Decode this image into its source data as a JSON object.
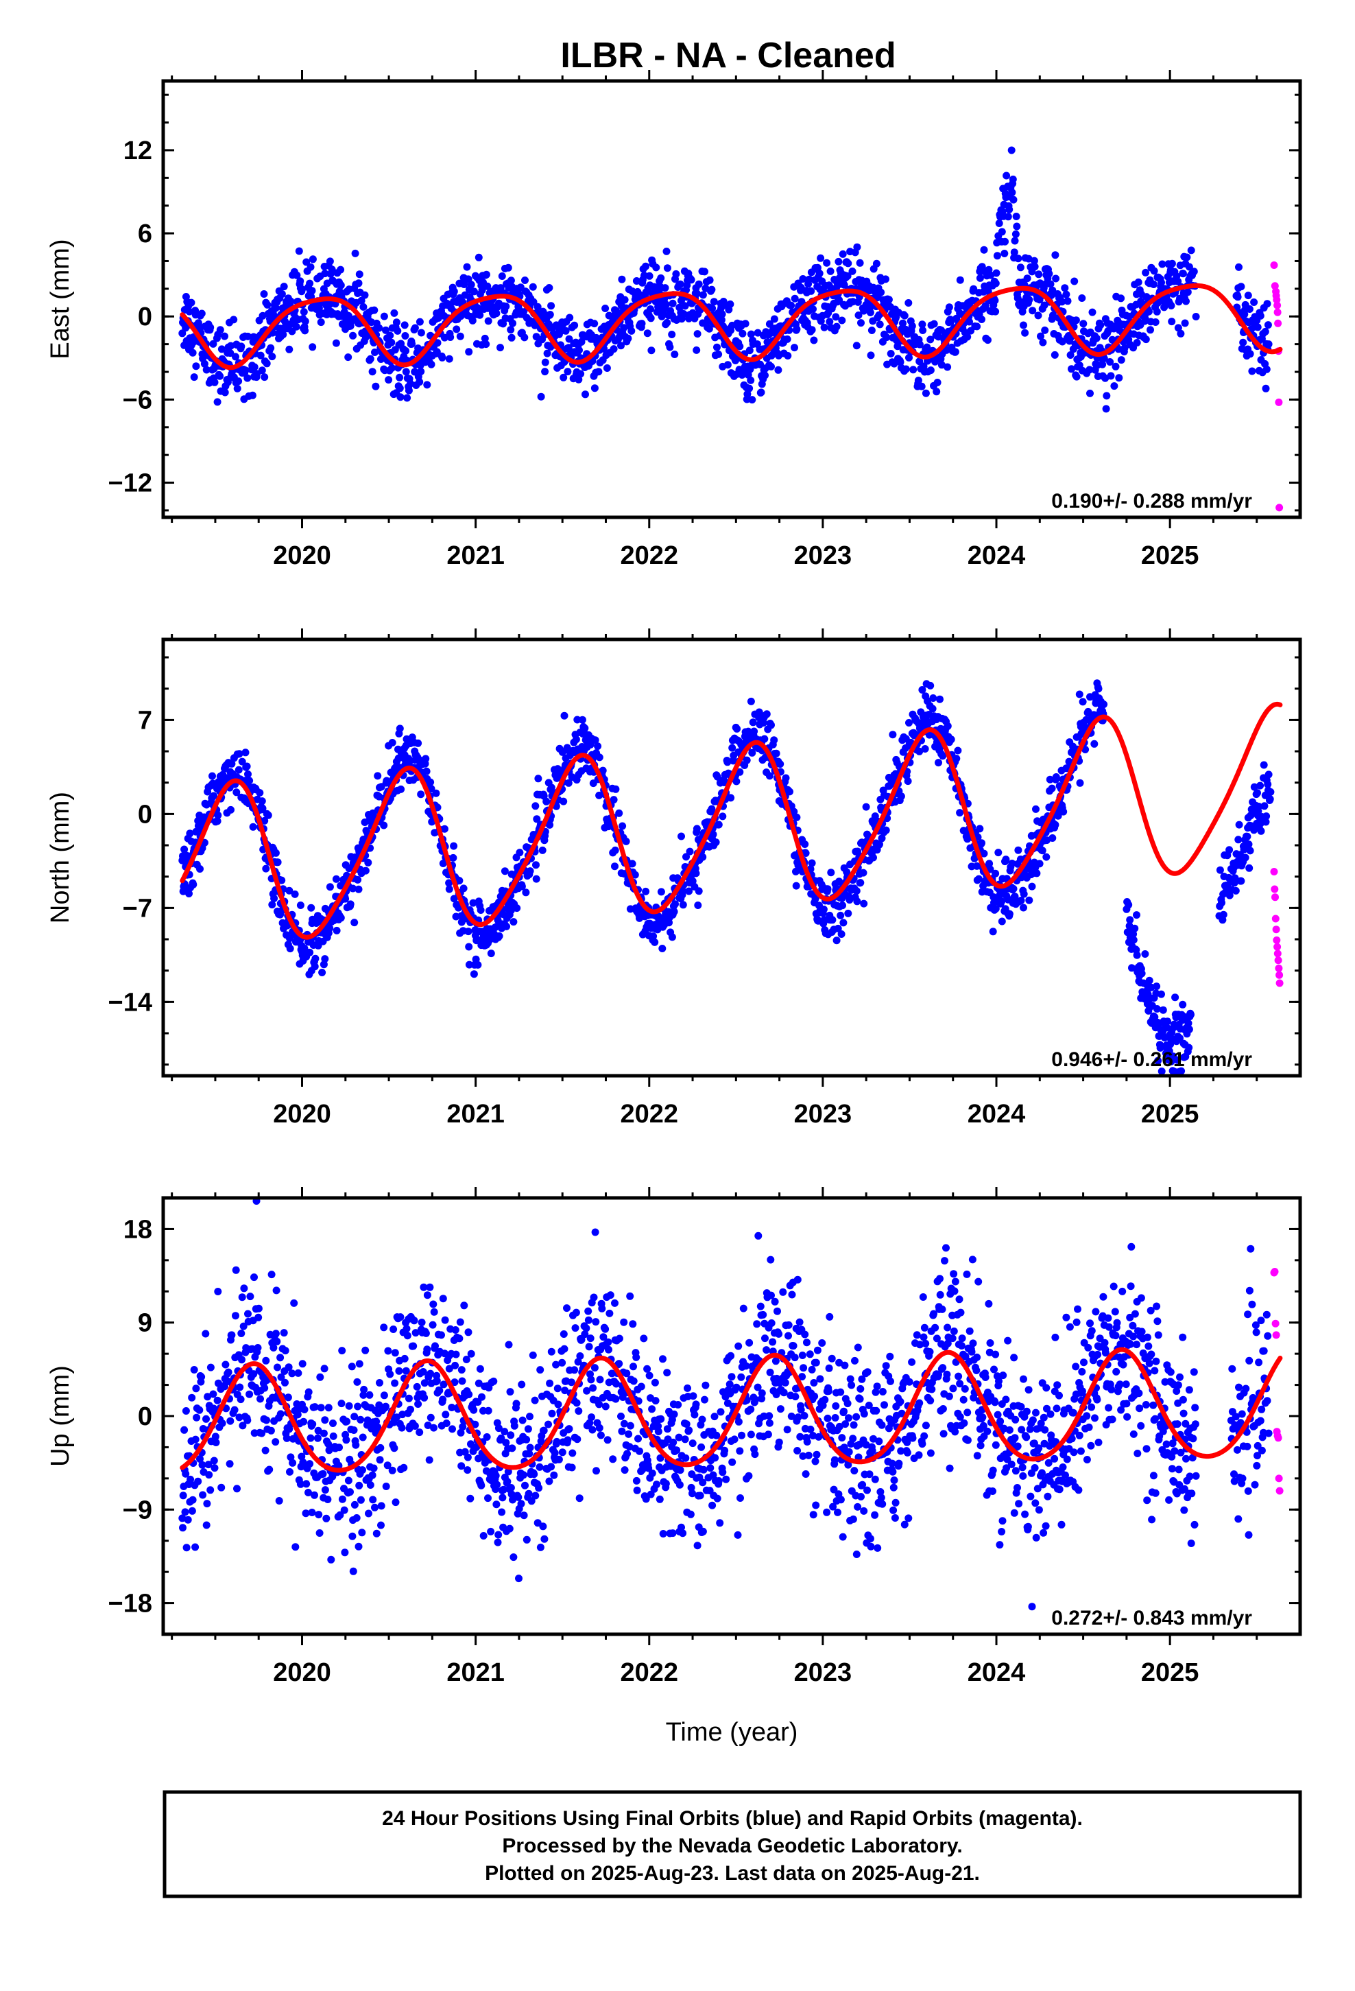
{
  "title": "ILBR  - NA - Cleaned",
  "colors": {
    "final": "#0000ff",
    "rapid": "#ff00ff",
    "fit": "#ff0000",
    "frame": "#000000"
  },
  "chart_data": [
    {
      "type": "scatter",
      "component": "east",
      "ylabel": "East (mm)",
      "xlabel": "",
      "xlim": [
        2019.2,
        2025.75
      ],
      "ylim": [
        -14.5,
        17
      ],
      "yticks": [
        12,
        6,
        0,
        -6,
        -12
      ],
      "ytick_labels": [
        "12",
        "6",
        "0",
        "−6",
        "−12"
      ],
      "xticks": [
        2020,
        2021,
        2022,
        2023,
        2024,
        2025
      ],
      "xtick_labels": [
        "2020",
        "2021",
        "2022",
        "2023",
        "2024",
        "2025"
      ],
      "rate_text": "0.190+/- 0.288 mm/yr",
      "fit_model": {
        "offset": -0.3,
        "trend": 0.19,
        "t0": 2022.5,
        "annual_amp": 2.4,
        "annual_phase": 0.85,
        "semiannual_amp": 0.45,
        "semiannual_phase": 0.2
      },
      "series": [
        {
          "name": "Final Orbits",
          "color": "#0000ff",
          "start": 2019.31,
          "end": 2025.57,
          "scatter": 1.3,
          "gaps": [
            [
              2025.15,
              2025.38
            ]
          ],
          "offsets": [
            [
              2024.0,
              2024.12,
              4.5
            ],
            [
              2024.05,
              2024.1,
              7
            ]
          ]
        },
        {
          "name": "Rapid Orbits",
          "color": "#ff00ff",
          "x": [
            2025.6,
            2025.605,
            2025.61,
            2025.612,
            2025.615,
            2025.618,
            2025.62,
            2025.622,
            2025.625,
            2025.627,
            2025.63
          ],
          "y": [
            3.7,
            2.2,
            1.8,
            1.5,
            1.2,
            0.8,
            0.3,
            -0.5,
            -2.5,
            -6.2,
            -13.8
          ]
        }
      ]
    },
    {
      "type": "scatter",
      "component": "north",
      "ylabel": "North (mm)",
      "xlabel": "",
      "xlim": [
        2019.2,
        2025.75
      ],
      "ylim": [
        -19.5,
        13
      ],
      "yticks": [
        7,
        0,
        -7,
        -14
      ],
      "ytick_labels": [
        "7",
        "0",
        "−7",
        "−14"
      ],
      "xticks": [
        2020,
        2021,
        2022,
        2023,
        2024,
        2025
      ],
      "xtick_labels": [
        "2020",
        "2021",
        "2022",
        "2023",
        "2024",
        "2025"
      ],
      "rate_text": "0.946+/- 0.261 mm/yr",
      "fit_model": {
        "offset": -1.1,
        "trend": 0.95,
        "t0": 2022.5,
        "annual_amp": 5.8,
        "annual_phase": 0.33,
        "semiannual_amp": 0.9,
        "semiannual_phase": 0.05
      },
      "series": [
        {
          "name": "Final Orbits",
          "color": "#0000ff",
          "start": 2019.31,
          "end": 2025.58,
          "scatter": 1.1,
          "bias": 1.3,
          "gaps": [
            [
              2024.62,
              2024.75
            ],
            [
              2025.12,
              2025.28
            ]
          ],
          "offsets": [
            [
              2024.75,
              2025.12,
              -12.5
            ],
            [
              2025.28,
              2025.6,
              -6.5
            ]
          ]
        },
        {
          "name": "Rapid Orbits",
          "color": "#ff00ff",
          "x": [
            2025.6,
            2025.603,
            2025.606,
            2025.609,
            2025.612,
            2025.615,
            2025.618,
            2025.621,
            2025.624,
            2025.627,
            2025.63,
            2025.632
          ],
          "y": [
            -4.3,
            -5.6,
            -6.2,
            -7.8,
            -8.6,
            -9.4,
            -9.9,
            -10.4,
            -10.9,
            -11.5,
            -12.0,
            -12.6
          ]
        }
      ]
    },
    {
      "type": "scatter",
      "component": "up",
      "ylabel": "Up (mm)",
      "xlabel": "Time (year)",
      "xlim": [
        2019.2,
        2025.75
      ],
      "ylim": [
        -21,
        21
      ],
      "yticks": [
        18,
        9,
        0,
        -9,
        -18
      ],
      "ytick_labels": [
        "18",
        "9",
        "0",
        "−9",
        "−18"
      ],
      "xticks": [
        2020,
        2021,
        2022,
        2023,
        2024,
        2025
      ],
      "xtick_labels": [
        "2020",
        "2021",
        "2022",
        "2023",
        "2024",
        "2025"
      ],
      "rate_text": "0.272+/- 0.843 mm/yr",
      "fit_model": {
        "offset": 0.0,
        "trend": 0.27,
        "t0": 2022.5,
        "annual_amp": 5.2,
        "annual_phase": 0.47,
        "semiannual_amp": 0.6,
        "semiannual_phase": 0.1
      },
      "series": [
        {
          "name": "Final Orbits",
          "color": "#0000ff",
          "start": 2019.31,
          "end": 2025.57,
          "scatter": 4.2,
          "gaps": [
            [
              2025.15,
              2025.35
            ]
          ],
          "offsets": []
        },
        {
          "name": "Rapid Orbits",
          "color": "#ff00ff",
          "x": [
            2025.6,
            2025.604,
            2025.608,
            2025.612,
            2025.616,
            2025.62,
            2025.624,
            2025.628,
            2025.632
          ],
          "y": [
            13.8,
            13.9,
            8.9,
            7.8,
            -1.5,
            -1.9,
            -2.1,
            -6.0,
            -7.2
          ]
        }
      ]
    }
  ],
  "caption": {
    "line1": "24 Hour Positions Using Final Orbits (blue) and Rapid Orbits (magenta).",
    "line2": "Processed by the Nevada Geodetic Laboratory.",
    "line3": "Plotted on 2025-Aug-23. Last data on 2025-Aug-21."
  }
}
